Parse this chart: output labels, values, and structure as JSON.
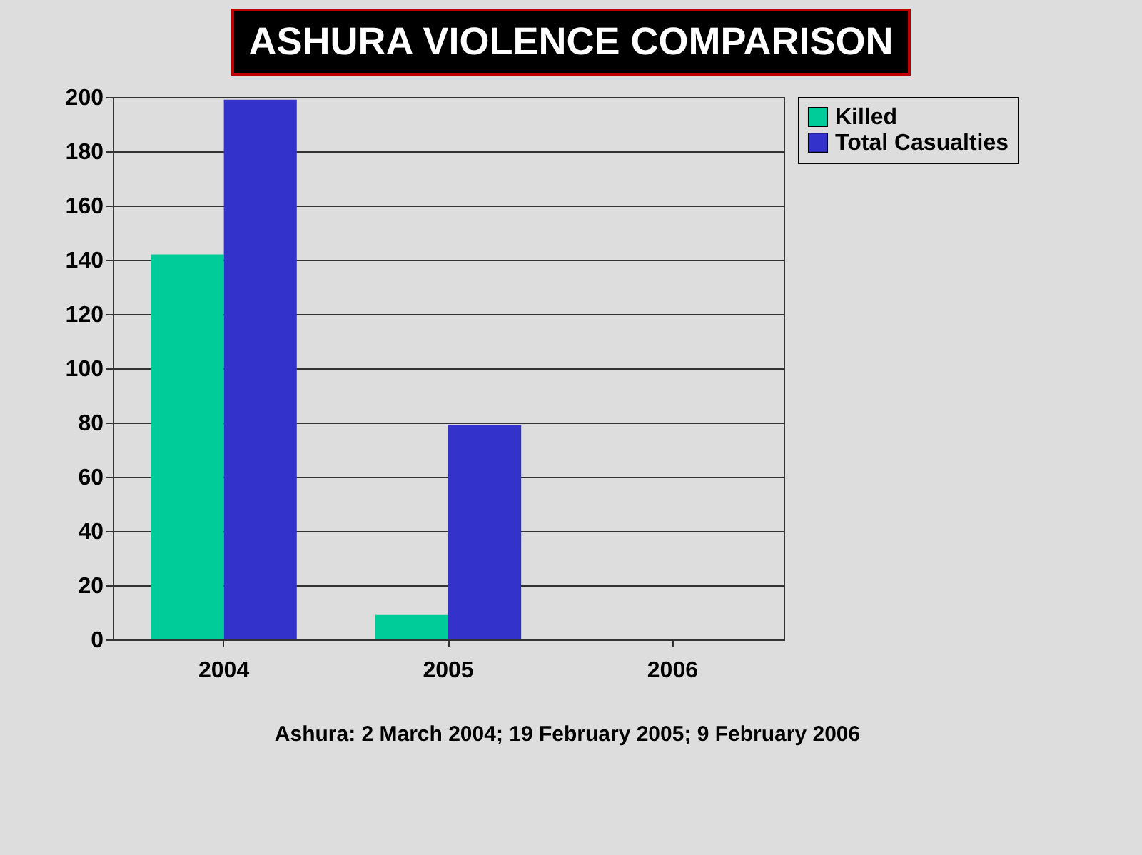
{
  "chart_data": {
    "type": "bar",
    "title": "ASHURA VIOLENCE COMPARISON",
    "categories": [
      "2004",
      "2005",
      "2006"
    ],
    "series": [
      {
        "name": "Killed",
        "color": "#00cc99",
        "values": [
          142,
          9,
          0
        ]
      },
      {
        "name": "Total Casualties",
        "color": "#3333cc",
        "values": [
          199,
          79,
          0
        ]
      }
    ],
    "ylim": [
      0,
      200
    ],
    "yticks": [
      0,
      20,
      40,
      60,
      80,
      100,
      120,
      140,
      160,
      180,
      200
    ],
    "grid": "y",
    "legend": "right",
    "annotations": [
      "Ashura:  2 March 2004; 19 February 2005; 9 February 2006"
    ]
  }
}
